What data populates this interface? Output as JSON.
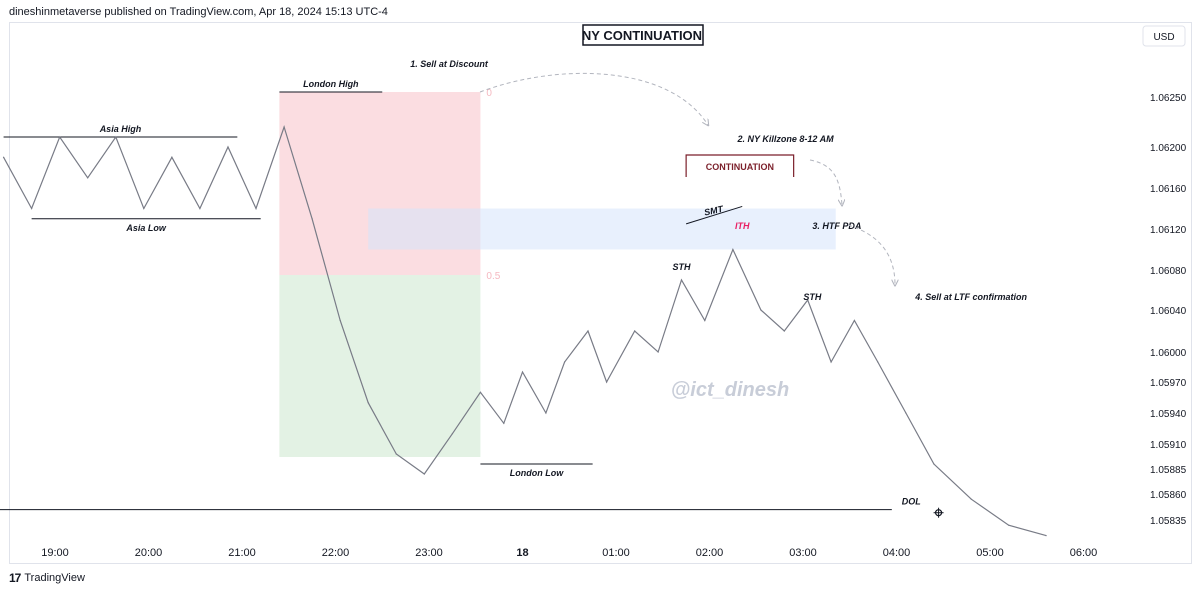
{
  "header": {
    "published_by": "dineshinmetaverse published on TradingView.com, Apr 18, 2024 15:13 UTC-4"
  },
  "footer": {
    "brand": "TradingView",
    "logo_glyph": "17"
  },
  "watermark": "@ict_dinesh",
  "currency": "USD",
  "chart_data": {
    "type": "line",
    "title": "NY CONTINUATION",
    "x_ticks": [
      "19:00",
      "20:00",
      "21:00",
      "22:00",
      "23:00",
      "18",
      "01:00",
      "02:00",
      "03:00",
      "04:00",
      "05:00",
      "06:00"
    ],
    "y_ticks": [
      1.0625,
      1.062,
      1.0616,
      1.0612,
      1.0608,
      1.0604,
      1.06,
      1.0597,
      1.0594,
      1.0591,
      1.05885,
      1.0586,
      1.05835
    ],
    "y_tick_labels": [
      "1.06250",
      "1.06200",
      "1.06160",
      "1.06120",
      "1.06080",
      "1.06040",
      "1.06000",
      "1.05970",
      "1.05940",
      "1.05910",
      "1.05885",
      "1.05860",
      "1.05835"
    ],
    "series": [
      {
        "values_x_hours": [
          -0.55,
          -0.25,
          0.05,
          0.35,
          0.65,
          0.95,
          1.25,
          1.55,
          1.85,
          2.15,
          2.45,
          2.75,
          3.05,
          3.35,
          3.65,
          3.95,
          4.25,
          4.55,
          4.8,
          5.0,
          5.25,
          5.45,
          5.7,
          5.9,
          6.2,
          6.45,
          6.7,
          6.95,
          7.25,
          7.55,
          7.8,
          8.05,
          8.3,
          8.55,
          8.8,
          9.1,
          9.4,
          9.8,
          10.2,
          10.6
        ],
        "values_y": [
          1.0619,
          1.0614,
          1.0621,
          1.0617,
          1.0621,
          1.0614,
          1.0619,
          1.0614,
          1.062,
          1.0614,
          1.0622,
          1.0613,
          1.0603,
          1.0595,
          1.059,
          1.0588,
          1.0592,
          1.0596,
          1.0593,
          1.0598,
          1.0594,
          1.0599,
          1.0602,
          1.0597,
          1.0602,
          1.06,
          1.0607,
          1.0603,
          1.061,
          1.0604,
          1.0602,
          1.0605,
          1.0599,
          1.0603,
          1.0599,
          1.0594,
          1.0589,
          1.05855,
          1.0583,
          1.0582
        ]
      }
    ],
    "fib_levels": [
      {
        "label": "0",
        "y": 1.06255
      },
      {
        "label": "0.5",
        "y": 1.06075
      }
    ],
    "zones": [
      {
        "name": "premium",
        "x_hours": [
          2.4,
          4.55
        ],
        "y_range": [
          1.06075,
          1.06255
        ],
        "color": "#f8bbc4"
      },
      {
        "name": "discount",
        "x_hours": [
          2.4,
          4.55
        ],
        "y_range": [
          1.05897,
          1.06075
        ],
        "color": "#c8e6c9"
      },
      {
        "name": "htf-pda",
        "x_hours": [
          3.35,
          8.35
        ],
        "y_range": [
          1.061,
          1.0614
        ],
        "color": "#d6e4fb"
      }
    ],
    "levels": [
      {
        "name": "asia-high",
        "label": "Asia High",
        "x_hours": [
          -0.55,
          1.95
        ],
        "y": 1.0621
      },
      {
        "name": "asia-low",
        "label": "Asia Low",
        "x_hours": [
          -0.25,
          2.2
        ],
        "y": 1.0613
      },
      {
        "name": "london-high",
        "label": "London High",
        "x_hours": [
          2.4,
          3.5
        ],
        "y": 1.06255
      },
      {
        "name": "london-low",
        "label": "London Low",
        "x_hours": [
          4.55,
          5.75
        ],
        "y": 1.0589
      },
      {
        "name": "dol",
        "label": "DOL",
        "x_hours": [
          -0.85,
          8.95
        ],
        "y": 1.05845
      }
    ],
    "annotations": [
      {
        "name": "sell-at-discount",
        "text": "1. Sell at Discount",
        "x_hours": 3.8,
        "y": 1.0628
      },
      {
        "name": "ny-killzone",
        "text": "2. NY Killzone 8-12 AM",
        "x_hours": 7.3,
        "y": 1.06205
      },
      {
        "name": "htf-pda-label",
        "text": "3. HTF PDA",
        "x_hours": 8.1,
        "y": 1.0612
      },
      {
        "name": "sell-ltf",
        "text": "4. Sell at LTF confirmation",
        "x_hours": 9.2,
        "y": 1.0605
      },
      {
        "name": "smt",
        "text": "SMT",
        "x_hours": 7.05,
        "y": 1.06135
      },
      {
        "name": "ith",
        "text": "ITH",
        "x_hours": 7.35,
        "y": 1.0612
      },
      {
        "name": "sth-1",
        "text": "STH",
        "x_hours": 6.7,
        "y": 1.0608
      },
      {
        "name": "sth-2",
        "text": "STH",
        "x_hours": 8.1,
        "y": 1.0605
      }
    ],
    "continuation_box": {
      "text": "CONTINUATION",
      "x_hours": [
        6.75,
        7.9
      ]
    },
    "colors": {
      "line": "#787b86",
      "title_border": "#131722",
      "ith": "#e91e63",
      "continuation": "#7b1f2a",
      "arrows": "#b2b5be",
      "fib_label": "#f5b8c0"
    }
  }
}
